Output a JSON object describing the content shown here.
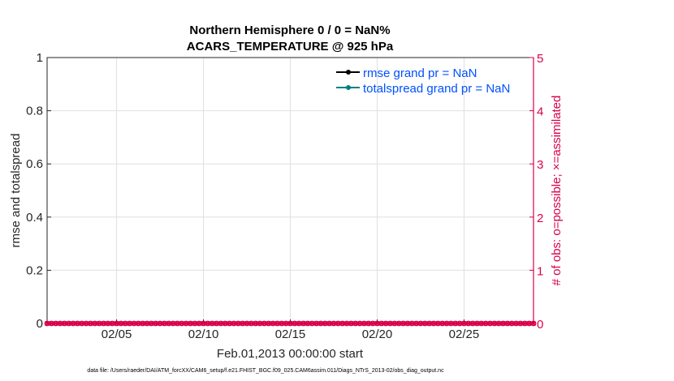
{
  "chart_data": {
    "type": "line",
    "title": [
      "Northern Hemisphere 0 / 0 = NaN%",
      "ACARS_TEMPERATURE @ 925 hPa"
    ],
    "xlabel": "Feb.01,2013 00:00:00 start",
    "ylabel": "rmse and totalspread",
    "ylabel_right": "# of obs: o=possible; ×=assimilated",
    "xlim": [
      "2013-02-01T00:00",
      "2013-03-01T00:00"
    ],
    "xticks": [
      {
        "date": "2013-02-05",
        "label": "02/05"
      },
      {
        "date": "2013-02-10",
        "label": "02/10"
      },
      {
        "date": "2013-02-15",
        "label": "02/15"
      },
      {
        "date": "2013-02-20",
        "label": "02/20"
      },
      {
        "date": "2013-02-25",
        "label": "02/25"
      }
    ],
    "ylim": [
      0,
      1
    ],
    "yticks": [
      "0",
      "0.2",
      "0.4",
      "0.6",
      "0.8",
      "1"
    ],
    "ylim_right": [
      0,
      5
    ],
    "yticks_right": [
      "0",
      "1",
      "2",
      "3",
      "4",
      "5"
    ],
    "grid": true,
    "legend_position": "top-right",
    "series": [
      {
        "name": "rmse grand pr = NaN",
        "axis": "left",
        "color": "#000000",
        "marker": "dot",
        "values": []
      },
      {
        "name": "totalspread grand pr = NaN",
        "axis": "left",
        "color": "#008080",
        "marker": "dot",
        "values": []
      },
      {
        "axis": "right",
        "color": "#d9004c",
        "marker": "o",
        "count": "possible",
        "value": 0
      },
      {
        "axis": "right",
        "color": "#d9004c",
        "marker": "x",
        "count": "assimilated",
        "value": 0
      }
    ],
    "obs_interval_hours": 6
  },
  "footer": "data file: /Users/raeder/DAI/ATM_forcXX/CAM6_setup/f.e21.FHIST_BGC.f09_025.CAM6assim.011/Diags_NTrS_2013-02/obs_diag_output.nc",
  "colors": {
    "right_axis": "#d9004c",
    "legend_text": "#0050ff"
  }
}
